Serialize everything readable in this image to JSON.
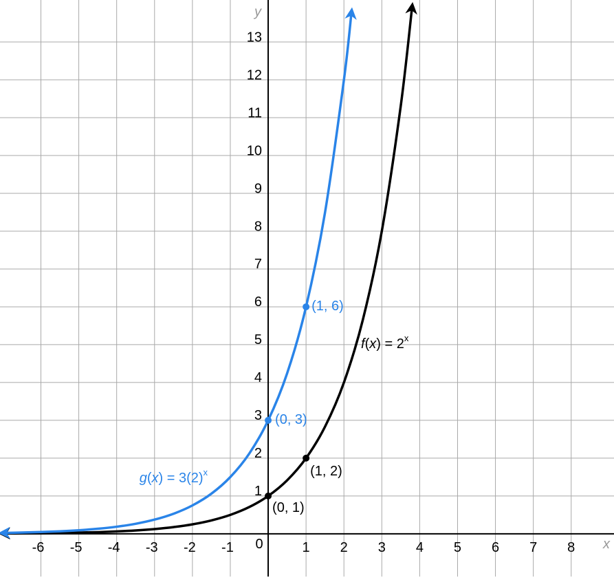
{
  "chart_data": {
    "type": "function-plot",
    "x_axis_label": "x",
    "y_axis_label": "y",
    "origin_label": "0",
    "xlim": [
      -7.08,
      9.13
    ],
    "ylim": [
      -1.13,
      14.11
    ],
    "xticks": [
      -6,
      -5,
      -4,
      -3,
      -2,
      -1,
      1,
      2,
      3,
      4,
      5,
      6,
      7,
      8
    ],
    "yticks": [
      1,
      2,
      3,
      4,
      5,
      6,
      7,
      8,
      9,
      10,
      11,
      12,
      13
    ],
    "grid": true,
    "series": [
      {
        "color": "#000000",
        "x": [
          -7,
          -6.5,
          -6,
          -5.5,
          -5,
          -4.5,
          -4,
          -3.5,
          -3,
          -2.5,
          -2,
          -1.5,
          -1,
          -0.5,
          0,
          0.5,
          1,
          1.5,
          2,
          2.5,
          3,
          3.5,
          3.8
        ],
        "values": [
          0.0078,
          0.011,
          0.0156,
          0.022,
          0.031,
          0.044,
          0.0625,
          0.088,
          0.125,
          0.177,
          0.25,
          0.354,
          0.5,
          0.707,
          1,
          1.414,
          2,
          2.83,
          4,
          5.66,
          8,
          11.31,
          13.93
        ],
        "label": [
          {
            "t": "f",
            "italic": true
          },
          {
            "t": "("
          },
          {
            "t": "x",
            "italic": true
          },
          {
            "t": ") = 2"
          },
          {
            "t": "x",
            "sup": true
          }
        ],
        "points": [
          {
            "x": 0,
            "y": 1,
            "label": "(0, 1)"
          },
          {
            "x": 1,
            "y": 2,
            "label": "(1, 2)"
          }
        ]
      },
      {
        "color": "#2a84e8",
        "x": [
          -7,
          -6.5,
          -6,
          -5.5,
          -5,
          -4.5,
          -4,
          -3.5,
          -3,
          -2.5,
          -2,
          -1.5,
          -1,
          -0.5,
          0,
          0.5,
          1,
          1.5,
          2,
          2.2
        ],
        "values": [
          0.023,
          0.033,
          0.047,
          0.066,
          0.094,
          0.133,
          0.1875,
          0.265,
          0.375,
          0.53,
          0.75,
          1.06,
          1.5,
          2.12,
          3,
          4.24,
          6,
          8.49,
          12,
          13.79
        ],
        "label": [
          {
            "t": "g",
            "italic": true
          },
          {
            "t": "("
          },
          {
            "t": "x",
            "italic": true
          },
          {
            "t": ") = 3(2)"
          },
          {
            "t": "x",
            "sup": true
          }
        ],
        "points": [
          {
            "x": 0,
            "y": 3,
            "label": "(0, 3)"
          },
          {
            "x": 1,
            "y": 6,
            "label": "(1, 6)"
          }
        ]
      }
    ]
  }
}
